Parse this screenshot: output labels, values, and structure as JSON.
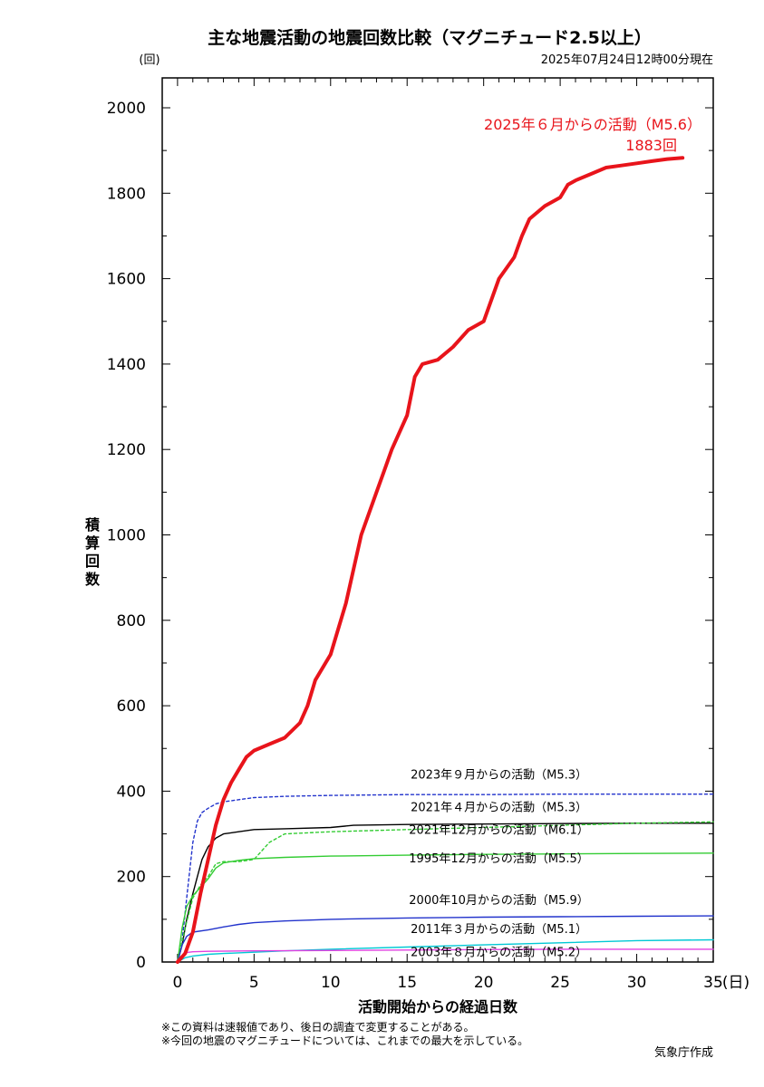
{
  "header": {
    "title": "主な地震活動の地震回数比較（マグニチュード2.5以上）",
    "timestamp": "2025年07月24日12時00分現在",
    "y_unit": "(回)",
    "x_unit": "(日)"
  },
  "footer": {
    "note1": "※この資料は速報値であり、後日の調査で変更することがある。",
    "note2": "※今回の地震のマグニチュードについては、これまでの最大を示している。",
    "credit": "気象庁作成"
  },
  "chart_data": {
    "type": "line",
    "title": "主な地震活動の地震回数比較（マグニチュード2.5以上）",
    "xlabel": "活動開始からの経過日数",
    "ylabel": "積算回数",
    "xlim": [
      -1,
      35
    ],
    "ylim": [
      0,
      2070
    ],
    "xticks": [
      "0",
      "5",
      "10",
      "15",
      "20",
      "25",
      "30",
      "35"
    ],
    "yticks": [
      "0",
      "200",
      "400",
      "600",
      "800",
      "1000",
      "1200",
      "1400",
      "1600",
      "1800",
      "2000"
    ],
    "current_label": "2025年６月からの活動（M5.6）",
    "current_count": "1883回",
    "series": [
      {
        "name": "2025年６月からの活動（M5.6）",
        "color": "#e8141b",
        "style": "solid-thick",
        "x": [
          0,
          0.5,
          1,
          1.5,
          2,
          2.5,
          3,
          3.5,
          4,
          4.5,
          5,
          6,
          7,
          8,
          8.5,
          9,
          10,
          11,
          12,
          13,
          13.5,
          14,
          15,
          15.5,
          16,
          17,
          18,
          19,
          20,
          21,
          22,
          22.5,
          23,
          24,
          25,
          25.5,
          26,
          27,
          28,
          29,
          30,
          31,
          32,
          33
        ],
        "y": [
          0,
          20,
          70,
          160,
          240,
          320,
          380,
          420,
          450,
          480,
          495,
          510,
          525,
          560,
          600,
          660,
          720,
          840,
          1000,
          1100,
          1150,
          1200,
          1280,
          1370,
          1400,
          1410,
          1440,
          1480,
          1500,
          1600,
          1650,
          1700,
          1740,
          1770,
          1790,
          1820,
          1830,
          1845,
          1860,
          1865,
          1870,
          1875,
          1880,
          1883
        ]
      },
      {
        "name": "2023年９月からの活動（M5.3）",
        "color": "#2233cc",
        "style": "dotted",
        "x": [
          0,
          0.3,
          0.6,
          1,
          1.3,
          1.6,
          2,
          2.5,
          3,
          4,
          5,
          7,
          10,
          15,
          20,
          25,
          30,
          35
        ],
        "y": [
          0,
          50,
          150,
          280,
          330,
          350,
          360,
          370,
          375,
          380,
          385,
          388,
          390,
          392,
          392,
          393,
          393,
          393
        ]
      },
      {
        "name": "2021年４月からの活動（M5.3）",
        "color": "#000000",
        "style": "solid",
        "x": [
          0,
          0.3,
          0.6,
          1,
          1.3,
          1.6,
          2,
          2.5,
          3,
          4,
          5,
          7,
          10,
          11.5,
          15,
          20,
          25,
          30,
          35
        ],
        "y": [
          0,
          40,
          100,
          160,
          200,
          240,
          270,
          290,
          300,
          305,
          310,
          312,
          315,
          320,
          322,
          323,
          324,
          325,
          325
        ]
      },
      {
        "name": "2021年12月からの活動（M6.1）",
        "color": "#33cc33",
        "style": "dotted",
        "x": [
          0,
          0.5,
          1,
          1.5,
          2,
          2.5,
          3,
          4,
          5,
          6,
          7,
          10,
          15,
          20,
          25,
          30,
          35
        ],
        "y": [
          0,
          80,
          150,
          180,
          200,
          230,
          235,
          235,
          240,
          280,
          300,
          305,
          310,
          315,
          320,
          325,
          328
        ]
      },
      {
        "name": "1995年12月からの活動（M5.5）",
        "color": "#33cc33",
        "style": "solid",
        "x": [
          0,
          0.3,
          0.6,
          1,
          1.5,
          2,
          2.5,
          3,
          4,
          5,
          7,
          10,
          15,
          20,
          25,
          30,
          35
        ],
        "y": [
          0,
          80,
          130,
          155,
          175,
          195,
          220,
          232,
          238,
          242,
          245,
          248,
          250,
          252,
          253,
          254,
          255
        ]
      },
      {
        "name": "2000年10月からの活動（M5.9）",
        "color": "#2233cc",
        "style": "solid",
        "x": [
          0,
          0.3,
          0.6,
          1,
          2,
          3,
          4,
          5,
          7,
          10,
          15,
          20,
          25,
          30,
          35
        ],
        "y": [
          0,
          40,
          60,
          70,
          75,
          82,
          88,
          92,
          96,
          100,
          103,
          105,
          106,
          107,
          108
        ]
      },
      {
        "name": "2011年３月からの活動（M5.1）",
        "color": "#00c8d4",
        "style": "solid",
        "x": [
          0,
          0.5,
          1,
          2,
          3,
          5,
          7,
          10,
          15,
          20,
          25,
          30,
          35
        ],
        "y": [
          0,
          10,
          14,
          18,
          20,
          23,
          26,
          30,
          35,
          40,
          45,
          50,
          52
        ]
      },
      {
        "name": "2003年８月からの活動（M5.2）",
        "color": "#e040e0",
        "style": "solid",
        "x": [
          0,
          0.3,
          0.6,
          1,
          2,
          5,
          10,
          15,
          20,
          25,
          30,
          35
        ],
        "y": [
          0,
          15,
          22,
          24,
          25,
          26,
          27,
          28,
          29,
          30,
          30,
          30
        ]
      }
    ],
    "series_labels": [
      {
        "text": "2023年９月からの活動（M5.3）",
        "x": 21,
        "y": 430
      },
      {
        "text": "2021年４月からの活動（M5.3）",
        "x": 21,
        "y": 353
      },
      {
        "text": "2021年12月からの活動（M6.1）",
        "x": 21,
        "y": 300
      },
      {
        "text": "1995年12月からの活動（M5.5）",
        "x": 21,
        "y": 233
      },
      {
        "text": "2000年10月からの活動（M5.9）",
        "x": 21,
        "y": 136
      },
      {
        "text": "2011年３月からの活動（M5.1）",
        "x": 21,
        "y": 68
      },
      {
        "text": "2003年８月からの活動（M5.2）",
        "x": 21,
        "y": 14
      }
    ],
    "grid": false
  }
}
